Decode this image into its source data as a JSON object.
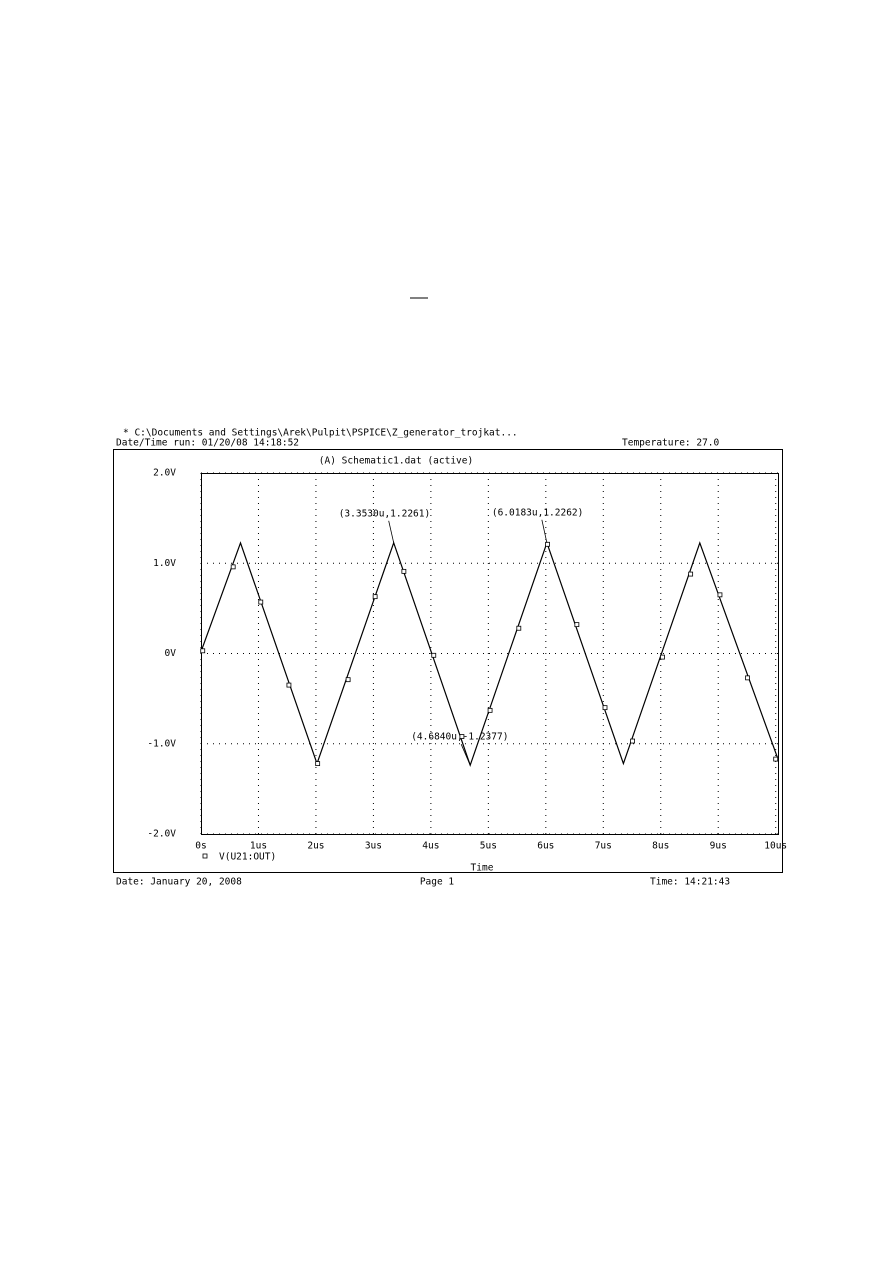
{
  "chart_data": {
    "type": "line",
    "header": {
      "file": "* C:\\Documents and Settings\\Arek\\Pulpit\\PSPICE\\Z_generator_trojkat...",
      "run": "Date/Time run: 01/20/08 14:18:52",
      "temperature": "Temperature: 27.0"
    },
    "title": "(A) Schematic1.dat (active)",
    "x_label": "Time",
    "footer": {
      "date": "Date: January 20, 2008",
      "page": "Page 1",
      "time": "Time: 14:21:43"
    },
    "xlim": [
      0,
      10.04
    ],
    "ylim": [
      -2,
      2
    ],
    "xticks": [
      {
        "value": 0,
        "label": "0s"
      },
      {
        "value": 1,
        "label": "1us"
      },
      {
        "value": 2,
        "label": "2us"
      },
      {
        "value": 3,
        "label": "3us"
      },
      {
        "value": 4,
        "label": "4us"
      },
      {
        "value": 5,
        "label": "5us"
      },
      {
        "value": 6,
        "label": "6us"
      },
      {
        "value": 7,
        "label": "7us"
      },
      {
        "value": 8,
        "label": "8us"
      },
      {
        "value": 9,
        "label": "9us"
      },
      {
        "value": 10,
        "label": "10us"
      }
    ],
    "yticks": [
      {
        "value": 2,
        "label": "2.0V"
      },
      {
        "value": 1,
        "label": "1.0V"
      },
      {
        "value": 0,
        "label": "0V"
      },
      {
        "value": -1,
        "label": "-1.0V"
      },
      {
        "value": -2,
        "label": "-2.0V"
      }
    ],
    "grid": true,
    "series": [
      {
        "name": "V(U21:OUT)",
        "color": "#000000",
        "x": [
          0,
          0.688,
          2.019,
          3.353,
          4.684,
          6.0183,
          7.35,
          8.68,
          10.04
        ],
        "values": [
          0.02,
          1.226,
          -1.22,
          1.2261,
          -1.2377,
          1.2262,
          -1.22,
          1.226,
          -1.17
        ],
        "markers": {
          "x": [
            0.03,
            0.56,
            1.04,
            1.53,
            2.03,
            2.56,
            3.03,
            3.53,
            4.05,
            4.54,
            5.03,
            5.53,
            6.03,
            6.54,
            7.03,
            7.51,
            8.03,
            8.52,
            9.03,
            9.51,
            10.0
          ],
          "values": [
            0.03,
            0.96,
            0.57,
            -0.35,
            -1.22,
            -0.29,
            0.63,
            0.91,
            -0.02,
            -0.92,
            -0.63,
            0.28,
            1.21,
            0.32,
            -0.6,
            -0.97,
            -0.04,
            0.88,
            0.65,
            -0.27,
            -1.17
          ]
        }
      }
    ],
    "annotations": [
      {
        "text": "(3.3530u,1.2261)",
        "x": 3.353,
        "y": 1.2261
      },
      {
        "text": "(6.0183u,1.2262)",
        "x": 6.0183,
        "y": 1.2262
      },
      {
        "text": "(4.6840u,-1.2377)",
        "x": 4.684,
        "y": -1.2377
      }
    ]
  }
}
